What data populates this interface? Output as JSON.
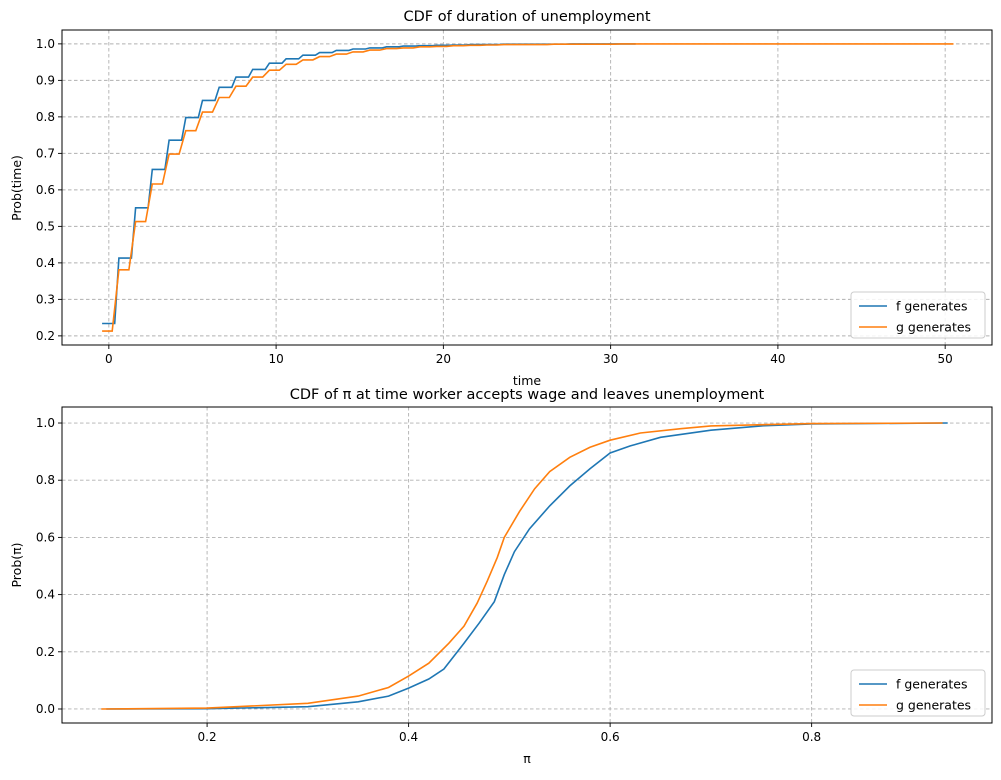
{
  "chart_data": [
    {
      "type": "line",
      "title": "CDF of duration of unemployment",
      "xlabel": "time",
      "ylabel": "Prob(time)",
      "xlim": [
        -2.8,
        52.8
      ],
      "ylim": [
        0.175,
        1.038
      ],
      "xticks": [
        0,
        10,
        20,
        30,
        40,
        50
      ],
      "xtick_labels": [
        "0",
        "10",
        "20",
        "30",
        "40",
        "50"
      ],
      "yticks": [
        0.2,
        0.3,
        0.4,
        0.5,
        0.6,
        0.7,
        0.8,
        0.9,
        1.0
      ],
      "ytick_labels": [
        "0.2",
        "0.3",
        "0.4",
        "0.5",
        "0.6",
        "0.7",
        "0.8",
        "0.9",
        "1.0"
      ],
      "grid": true,
      "legend_position": "bottom-right",
      "series": [
        {
          "name": "f generates",
          "color": "#1f77b4",
          "x": [
            0,
            1,
            2,
            3,
            4,
            5,
            6,
            7,
            8,
            9,
            10,
            11,
            12,
            13,
            14,
            15,
            16,
            17,
            18,
            19,
            20,
            21,
            22,
            23,
            24,
            25,
            26,
            27,
            28,
            29,
            30,
            31
          ],
          "y": [
            0.234,
            0.413,
            0.551,
            0.656,
            0.736,
            0.798,
            0.845,
            0.881,
            0.909,
            0.93,
            0.947,
            0.959,
            0.969,
            0.976,
            0.982,
            0.986,
            0.989,
            0.992,
            0.994,
            0.995,
            0.996,
            0.997,
            0.998,
            0.998,
            0.999,
            0.999,
            0.999,
            0.999,
            1.0,
            1.0,
            1.0,
            1.0
          ]
        },
        {
          "name": "g generates",
          "color": "#ff7f0e",
          "x": [
            0,
            1,
            2,
            3,
            4,
            5,
            6,
            7,
            8,
            9,
            10,
            11,
            12,
            13,
            14,
            15,
            16,
            17,
            18,
            19,
            20,
            21,
            22,
            23,
            24,
            25,
            26,
            27,
            28,
            29,
            30,
            31,
            32,
            33,
            34,
            35,
            36,
            37,
            38,
            39,
            40,
            41,
            42,
            43,
            44,
            45,
            46,
            47,
            48,
            49,
            50
          ],
          "y": [
            0.213,
            0.381,
            0.513,
            0.616,
            0.698,
            0.762,
            0.813,
            0.853,
            0.884,
            0.909,
            0.928,
            0.944,
            0.956,
            0.965,
            0.972,
            0.978,
            0.983,
            0.987,
            0.989,
            0.992,
            0.993,
            0.995,
            0.996,
            0.997,
            0.998,
            0.998,
            0.998,
            0.999,
            0.999,
            0.999,
            0.999,
            1.0,
            1.0,
            1.0,
            1.0,
            1.0,
            1.0,
            1.0,
            1.0,
            1.0,
            1.0,
            1.0,
            1.0,
            1.0,
            1.0,
            1.0,
            1.0,
            1.0,
            1.0,
            1.0,
            1.0
          ]
        }
      ]
    },
    {
      "type": "line",
      "title": "CDF of π at time worker accepts wage and leaves unemployment",
      "xlabel": "π",
      "ylabel": "Prob(π)",
      "xlim": [
        0.056,
        0.979
      ],
      "ylim": [
        -0.049,
        1.056
      ],
      "xticks": [
        0.2,
        0.4,
        0.6,
        0.8
      ],
      "xtick_labels": [
        "0.2",
        "0.4",
        "0.6",
        "0.8"
      ],
      "yticks": [
        0.0,
        0.2,
        0.4,
        0.6,
        0.8,
        1.0
      ],
      "ytick_labels": [
        "0.0",
        "0.2",
        "0.4",
        "0.6",
        "0.8",
        "1.0"
      ],
      "grid": true,
      "legend_position": "bottom-right",
      "series": [
        {
          "name": "f generates",
          "color": "#1f77b4",
          "x": [
            0.1,
            0.2,
            0.3,
            0.35,
            0.38,
            0.4,
            0.42,
            0.435,
            0.455,
            0.47,
            0.485,
            0.495,
            0.505,
            0.52,
            0.54,
            0.56,
            0.58,
            0.6,
            0.62,
            0.65,
            0.7,
            0.75,
            0.8,
            0.935
          ],
          "y": [
            0.0,
            0.001,
            0.008,
            0.025,
            0.045,
            0.073,
            0.105,
            0.14,
            0.23,
            0.3,
            0.375,
            0.47,
            0.55,
            0.63,
            0.71,
            0.78,
            0.84,
            0.895,
            0.92,
            0.95,
            0.975,
            0.99,
            0.997,
            1.0
          ]
        },
        {
          "name": "g generates",
          "color": "#ff7f0e",
          "x": [
            0.095,
            0.2,
            0.3,
            0.35,
            0.38,
            0.4,
            0.42,
            0.44,
            0.455,
            0.468,
            0.478,
            0.488,
            0.495,
            0.51,
            0.525,
            0.54,
            0.56,
            0.58,
            0.6,
            0.63,
            0.67,
            0.7,
            0.8,
            0.93
          ],
          "y": [
            0.0,
            0.003,
            0.02,
            0.045,
            0.075,
            0.115,
            0.16,
            0.23,
            0.29,
            0.37,
            0.447,
            0.53,
            0.6,
            0.69,
            0.77,
            0.83,
            0.88,
            0.915,
            0.94,
            0.965,
            0.98,
            0.99,
            0.998,
            1.0
          ]
        }
      ]
    }
  ]
}
